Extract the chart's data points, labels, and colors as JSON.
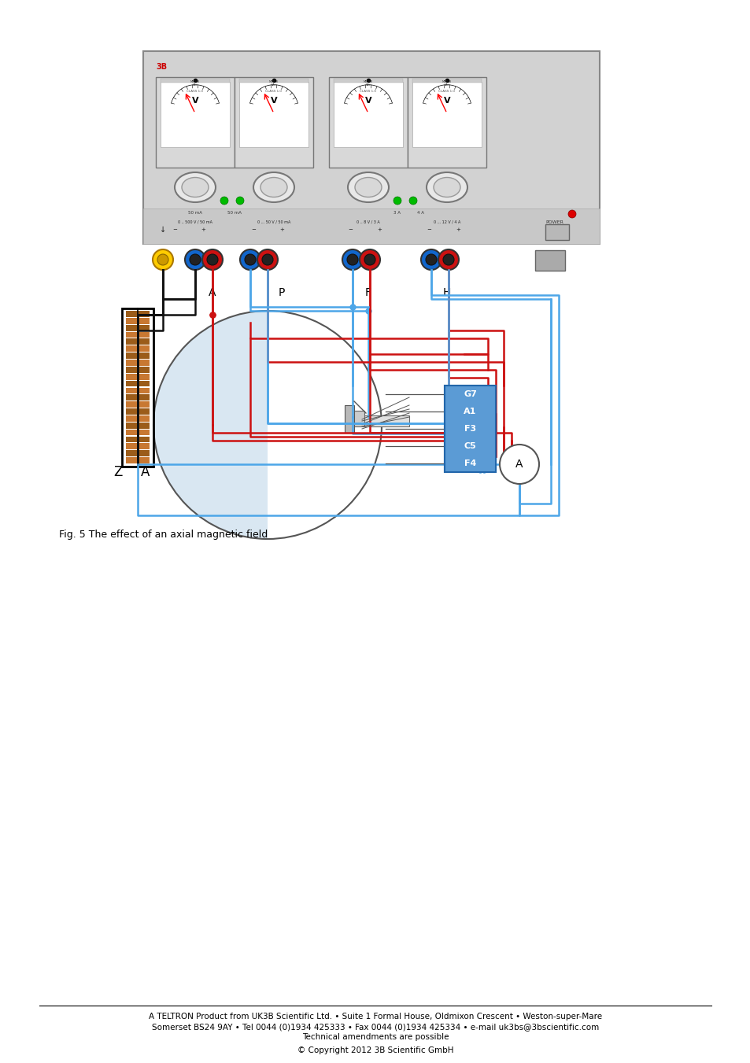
{
  "page_bg": "#ffffff",
  "fig_caption": "Fig. 5 The effect of an axial magnetic field",
  "caption_fontsize": 9,
  "footer_texts": [
    "A TELTRON Product from UK3B Scientific Ltd. • Suite 1 Formal House, Oldmixon Crescent • Weston-super-Mare",
    "Somerset BS24 9AY • Tel 0044 (0)1934 425333 • Fax 0044 (0)1934 425334 • e-mail uk3bs@3bscientific.com",
    "Technical amendments are possible",
    "© Copyright 2012 3B Scientific GmbH"
  ],
  "footer_fontsize": 7.5,
  "wire_blue": "#4da6e8",
  "wire_red": "#cc1111",
  "wire_black": "#111111",
  "tube_box_color": "#5b9bd5",
  "tube_labels": [
    "G7",
    "A1",
    "F3",
    "C5",
    "F4"
  ],
  "psu_gray": "#d2d2d2",
  "psu_dark": "#c0c0c0",
  "meter_face": "#e8e8e8"
}
